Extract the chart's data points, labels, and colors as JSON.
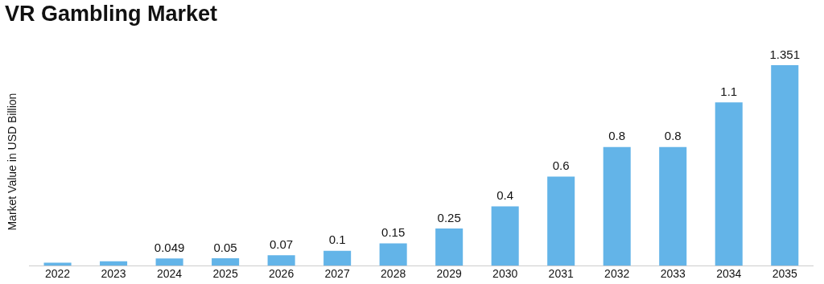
{
  "chart_data": {
    "type": "bar",
    "title": "VR Gambling Market",
    "ylabel": "Market Value in USD Billion",
    "categories": [
      "2022",
      "2023",
      "2024",
      "2025",
      "2026",
      "2027",
      "2028",
      "2029",
      "2030",
      "2031",
      "2032",
      "2033",
      "2034",
      "2035"
    ],
    "values": [
      0.02,
      0.03,
      0.049,
      0.05,
      0.07,
      0.1,
      0.15,
      0.25,
      0.4,
      0.6,
      0.8,
      0.8,
      1.1,
      1.351
    ],
    "value_labels": [
      null,
      null,
      "0.049",
      "0.05",
      "0.07",
      "0.1",
      "0.15",
      "0.25",
      "0.4",
      "0.6",
      "0.8",
      "0.8",
      "1.1",
      "1.351"
    ],
    "color": "#63b4e8",
    "grid": false,
    "legend": false
  }
}
